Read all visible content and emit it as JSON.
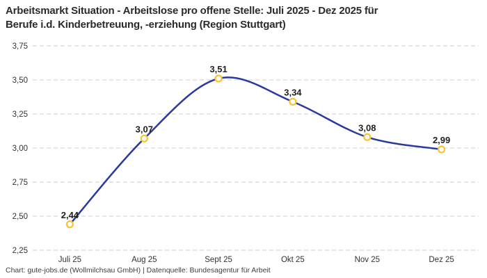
{
  "page": {
    "title_line1": "Arbeitsmarkt Situation - Arbeitslose pro offene Stelle: Juli 2025 - Dez 2025 für",
    "title_line2": "Berufe i.d. Kinderbetreuung, -erziehung (Region Stuttgart)",
    "footer": "Chart: gute-jobs.de (Wollmilchsau GmbH) | Datenquelle: Bundesagentur für Arbeit"
  },
  "chart_data": {
    "type": "line",
    "title": "Arbeitsmarkt Situation - Arbeitslose pro offene Stelle: Juli 2025 - Dez 2025 für Berufe i.d. Kinderbetreuung, -erziehung (Region Stuttgart)",
    "categories": [
      "Juli 25",
      "Aug 25",
      "Sept 25",
      "Okt 25",
      "Nov 25",
      "Dez 25"
    ],
    "values": [
      2.44,
      3.07,
      3.51,
      3.34,
      3.08,
      2.99
    ],
    "value_labels": [
      "2,44",
      "3,07",
      "3,51",
      "3,34",
      "3,08",
      "2,99"
    ],
    "xlabel": "",
    "ylabel": "",
    "ylim": [
      2.25,
      3.75
    ],
    "yticks": [
      2.25,
      2.5,
      2.75,
      3.0,
      3.25,
      3.5,
      3.75
    ],
    "ytick_labels": [
      "2,25",
      "2,50",
      "2,75",
      "3,00",
      "3,25",
      "3,50",
      "3,75"
    ],
    "grid": "horizontal-dashed",
    "legend": "none",
    "curve": "smooth",
    "colors": {
      "line": "#2a3a9c",
      "marker_ring": "#fbc32d",
      "marker_fill": "#ffffff",
      "grid": "#cccccc",
      "value_label": "#1f1f1f",
      "tick_label": "#333333",
      "title": "#2b2b2b",
      "background": "#ffffff"
    }
  }
}
